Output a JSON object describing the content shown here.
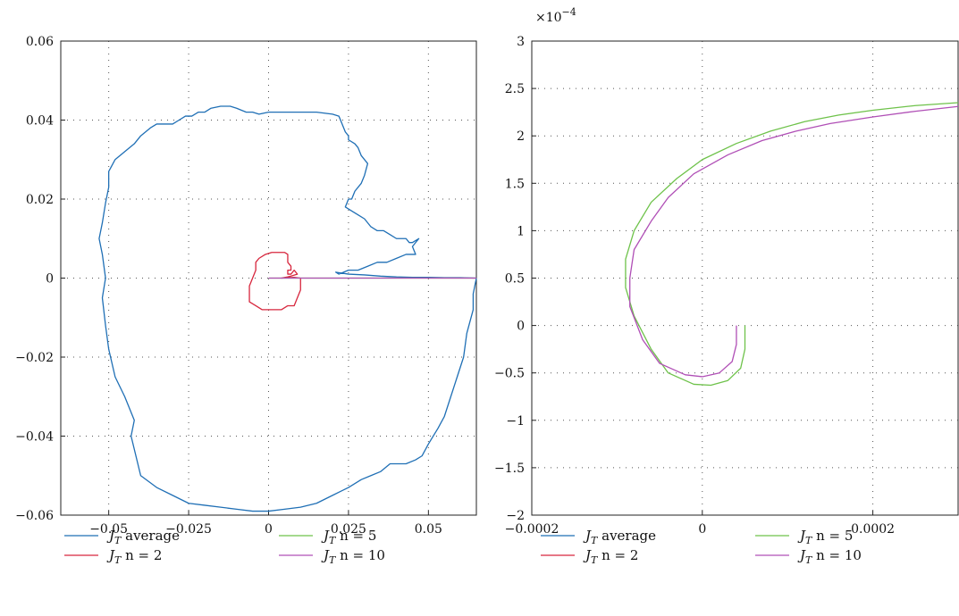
{
  "chart_data": [
    {
      "type": "line",
      "xlim": [
        -0.065,
        0.065
      ],
      "ylim": [
        -0.06,
        0.06
      ],
      "xticks": [
        -0.05,
        -0.025,
        0,
        0.025,
        0.05
      ],
      "xtick_labels": [
        "−0.05",
        "−0.025",
        "0",
        "0.025",
        "0.05"
      ],
      "yticks": [
        -0.06,
        -0.04,
        -0.02,
        0,
        0.02,
        0.04,
        0.06
      ],
      "ytick_labels": [
        "−0.06",
        "−0.04",
        "−0.02",
        "0",
        "0.02",
        "0.04",
        "0.06"
      ],
      "grid": true,
      "legend_position": "bottom",
      "series": [
        {
          "name_main": "J",
          "name_sub": "T",
          "name_rest": " average",
          "color": "#1f6fb5",
          "x": [
            0.065,
            0.064,
            0.064,
            0.062,
            0.061,
            0.059,
            0.057,
            0.055,
            0.053,
            0.05,
            0.048,
            0.046,
            0.043,
            0.04,
            0.038,
            0.035,
            0.032,
            0.029,
            0.025,
            0.02,
            0.015,
            0.01,
            0.005,
            0,
            -0.005,
            -0.01,
            -0.015,
            -0.02,
            -0.025,
            -0.03,
            -0.035,
            -0.04,
            -0.043,
            -0.042,
            -0.045,
            -0.048,
            -0.05,
            -0.051,
            -0.052,
            -0.051,
            -0.052,
            -0.053,
            -0.052,
            -0.051,
            -0.05,
            -0.05,
            -0.048,
            -0.045,
            -0.042,
            -0.04,
            -0.037,
            -0.035,
            -0.03,
            -0.028,
            -0.026,
            -0.024,
            -0.022,
            -0.02,
            -0.018,
            -0.015,
            -0.012,
            -0.01,
            -0.007,
            -0.005,
            -0.003,
            0,
            0.003,
            0.005,
            0.01,
            0.015,
            0.02,
            0.022,
            0.023,
            0.024,
            0.025,
            0.025,
            0.027,
            0.028,
            0.029,
            0.031,
            0.03,
            0.029,
            0.027,
            0.026,
            0.025,
            0.024,
            0.026,
            0.028,
            0.03,
            0.032,
            0.034,
            0.036,
            0.038,
            0.04,
            0.043,
            0.044,
            0.045,
            0.047,
            0.045,
            0.046,
            0.043,
            0.04,
            0.037,
            0.034,
            0.031,
            0.028,
            0.025,
            0.022,
            0.021,
            0.025,
            0.03,
            0.035,
            0.04,
            0.045,
            0.05,
            0.055,
            0.06,
            0.065
          ],
          "y": [
            0,
            -0.004,
            -0.008,
            -0.014,
            -0.02,
            -0.025,
            -0.03,
            -0.035,
            -0.038,
            -0.042,
            -0.045,
            -0.046,
            -0.047,
            -0.047,
            -0.047,
            -0.049,
            -0.05,
            -0.051,
            -0.053,
            -0.055,
            -0.057,
            -0.058,
            -0.0585,
            -0.059,
            -0.059,
            -0.0585,
            -0.058,
            -0.0575,
            -0.057,
            -0.055,
            -0.053,
            -0.05,
            -0.04,
            -0.036,
            -0.03,
            -0.025,
            -0.018,
            -0.012,
            -0.005,
            0,
            0.006,
            0.01,
            0.014,
            0.019,
            0.023,
            0.027,
            0.03,
            0.032,
            0.034,
            0.036,
            0.038,
            0.039,
            0.039,
            0.04,
            0.041,
            0.041,
            0.042,
            0.042,
            0.043,
            0.0435,
            0.0435,
            0.043,
            0.042,
            0.042,
            0.0415,
            0.042,
            0.042,
            0.042,
            0.042,
            0.042,
            0.0415,
            0.041,
            0.039,
            0.037,
            0.036,
            0.035,
            0.034,
            0.033,
            0.031,
            0.029,
            0.026,
            0.024,
            0.022,
            0.02,
            0.02,
            0.018,
            0.017,
            0.016,
            0.015,
            0.013,
            0.012,
            0.012,
            0.011,
            0.01,
            0.01,
            0.009,
            0.009,
            0.01,
            0.008,
            0.006,
            0.006,
            0.005,
            0.004,
            0.004,
            0.003,
            0.002,
            0.002,
            0.001,
            0.0015,
            0.001,
            0.0008,
            0.0005,
            0.0003,
            0.0002,
            0.0002,
            0.0001,
            0.0001,
            0
          ]
        },
        {
          "name_main": "J",
          "name_sub": "T",
          "name_rest": " n = 2",
          "color": "#d7263d",
          "x": [
            0,
            -0.002,
            -0.004,
            -0.006,
            -0.006,
            -0.006,
            -0.005,
            -0.004,
            -0.004,
            -0.003,
            -0.001,
            0.001,
            0.003,
            0.005,
            0.006,
            0.006,
            0.007,
            0.007,
            0.006,
            0.006,
            0.007,
            0.008,
            0.009,
            0.007,
            0.006,
            0.004,
            0.006,
            0.008,
            0.01,
            0.01,
            0.009,
            0.008,
            0.006,
            0.004,
            0.002,
            0
          ],
          "y": [
            -0.008,
            -0.008,
            -0.007,
            -0.006,
            -0.004,
            -0.002,
            0,
            0.002,
            0.004,
            0.005,
            0.006,
            0.0065,
            0.0065,
            0.0065,
            0.006,
            0.004,
            0.003,
            0.002,
            0.002,
            0.001,
            0.001,
            0.002,
            0.001,
            0.0005,
            0.0003,
            0,
            0.0001,
            0.0002,
            0,
            -0.003,
            -0.005,
            -0.007,
            -0.007,
            -0.008,
            -0.008,
            -0.008
          ]
        },
        {
          "name_main": "J",
          "name_sub": "T",
          "name_rest": " n = 5",
          "color": "#6ec24a",
          "x": [
            0,
            0.065
          ],
          "y": [
            0,
            0
          ]
        },
        {
          "name_main": "J",
          "name_sub": "T",
          "name_rest": " n = 10",
          "color": "#b04fb6",
          "x": [
            0,
            0.065
          ],
          "y": [
            0,
            0
          ]
        }
      ]
    },
    {
      "type": "line",
      "xlim": [
        -0.0002,
        0.0003
      ],
      "ylim": [
        -2,
        3
      ],
      "y_multiplier_base": "×10",
      "y_multiplier_exp": "−4",
      "xticks": [
        -0.0002,
        0,
        0.0002
      ],
      "xtick_labels": [
        "−0.0002",
        "0",
        "0.0002"
      ],
      "yticks": [
        -2,
        -1.5,
        -1,
        -0.5,
        0,
        0.5,
        1,
        1.5,
        2,
        2.5,
        3
      ],
      "ytick_labels": [
        "−2",
        "−1.5",
        "−1",
        "−0.5",
        "0",
        "0.5",
        "1",
        "1.5",
        "2",
        "2.5",
        "3"
      ],
      "grid": true,
      "legend_position": "bottom",
      "series": [
        {
          "name_main": "J",
          "name_sub": "T",
          "name_rest": " average",
          "color": "#1f6fb5",
          "x": [],
          "y": []
        },
        {
          "name_main": "J",
          "name_sub": "T",
          "name_rest": " n = 2",
          "color": "#d7263d",
          "x": [],
          "y": []
        },
        {
          "name_main": "J",
          "name_sub": "T",
          "name_rest": " n = 5",
          "color": "#6ec24a",
          "x": [
            5e-05,
            5e-05,
            4.5e-05,
            3e-05,
            1e-05,
            -1e-05,
            -4e-05,
            -6e-05,
            -8e-05,
            -9e-05,
            -9e-05,
            -8e-05,
            -6e-05,
            -3e-05,
            0,
            4e-05,
            8e-05,
            0.00012,
            0.00016,
            0.0002,
            0.00025,
            0.0003
          ],
          "y": [
            0,
            -0.25,
            -0.45,
            -0.58,
            -0.63,
            -0.62,
            -0.5,
            -0.25,
            0.1,
            0.4,
            0.7,
            1.0,
            1.3,
            1.55,
            1.75,
            1.92,
            2.05,
            2.15,
            2.22,
            2.27,
            2.32,
            2.35
          ]
        },
        {
          "name_main": "J",
          "name_sub": "T",
          "name_rest": " n = 10",
          "color": "#b04fb6",
          "x": [
            4e-05,
            4e-05,
            3.5e-05,
            2e-05,
            0,
            -2e-05,
            -5e-05,
            -7e-05,
            -8.5e-05,
            -8.5e-05,
            -8e-05,
            -6e-05,
            -4e-05,
            -1e-05,
            3e-05,
            7e-05,
            0.00011,
            0.00015,
            0.0002,
            0.00025,
            0.0003
          ],
          "y": [
            0,
            -0.2,
            -0.38,
            -0.5,
            -0.54,
            -0.52,
            -0.4,
            -0.15,
            0.2,
            0.5,
            0.8,
            1.1,
            1.35,
            1.6,
            1.8,
            1.95,
            2.05,
            2.13,
            2.2,
            2.26,
            2.31
          ]
        }
      ]
    }
  ]
}
